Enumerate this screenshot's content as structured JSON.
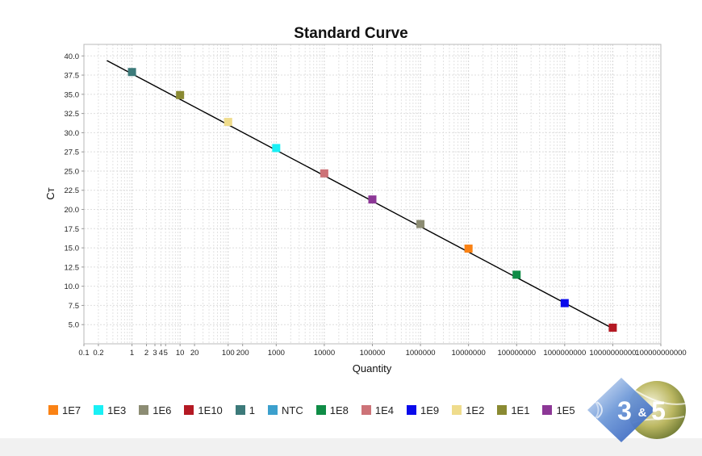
{
  "chart_data": {
    "type": "scatter",
    "title": "Standard Curve",
    "xlabel": "Quantity",
    "ylabel": "Cт",
    "xscale": "log",
    "xlim": [
      0.1,
      100000000000
    ],
    "ylim": [
      2.5,
      41.5
    ],
    "grid": true,
    "legend_position": "bottom",
    "x_tick_labels": [
      {
        "value": 0.1,
        "label": "0.1"
      },
      {
        "value": 0.2,
        "label": "0.2"
      },
      {
        "value": 1,
        "label": "1"
      },
      {
        "value": 2,
        "label": "2"
      },
      {
        "value": 3,
        "label": "3"
      },
      {
        "value": 4,
        "label": "4"
      },
      {
        "value": 5,
        "label": "5"
      },
      {
        "value": 10,
        "label": "10"
      },
      {
        "value": 20,
        "label": "20"
      },
      {
        "value": 100,
        "label": "100"
      },
      {
        "value": 200,
        "label": "200"
      },
      {
        "value": 1000,
        "label": "1000"
      },
      {
        "value": 10000,
        "label": "10000"
      },
      {
        "value": 100000,
        "label": "100000"
      },
      {
        "value": 1000000,
        "label": "1000000"
      },
      {
        "value": 10000000,
        "label": "10000000"
      },
      {
        "value": 100000000,
        "label": "100000000"
      },
      {
        "value": 1000000000,
        "label": "1000000000"
      },
      {
        "value": 10000000000,
        "label": "10000000000"
      },
      {
        "value": 100000000000,
        "label": "100000000000"
      }
    ],
    "y_ticks": [
      {
        "value": 5,
        "label": "5.0"
      },
      {
        "value": 7.5,
        "label": "7.5"
      },
      {
        "value": 10,
        "label": "10.0"
      },
      {
        "value": 12.5,
        "label": "12.5"
      },
      {
        "value": 15,
        "label": "15.0"
      },
      {
        "value": 17.5,
        "label": "17.5"
      },
      {
        "value": 20,
        "label": "20.0"
      },
      {
        "value": 22.5,
        "label": "22.5"
      },
      {
        "value": 25,
        "label": "25.0"
      },
      {
        "value": 27.5,
        "label": "27.5"
      },
      {
        "value": 30,
        "label": "30.0"
      },
      {
        "value": 32.5,
        "label": "32.5"
      },
      {
        "value": 35,
        "label": "35.0"
      },
      {
        "value": 37.5,
        "label": "37.5"
      },
      {
        "value": 40,
        "label": "40.0"
      }
    ],
    "fit_line": {
      "x": [
        0.3,
        10000000000
      ],
      "y": [
        39.4,
        4.5
      ]
    },
    "points": [
      {
        "name": "1",
        "x": 1,
        "y": 37.9,
        "color": "#3c7a7a"
      },
      {
        "name": "1E1",
        "x": 10,
        "y": 34.9,
        "color": "#8a8a32"
      },
      {
        "name": "1E2",
        "x": 100,
        "y": 31.4,
        "color": "#efdc8c"
      },
      {
        "name": "1E3",
        "x": 1000,
        "y": 28.0,
        "color": "#19f0f5"
      },
      {
        "name": "1E4",
        "x": 10000,
        "y": 24.7,
        "color": "#cd7378"
      },
      {
        "name": "1E5",
        "x": 100000,
        "y": 21.3,
        "color": "#8c3796"
      },
      {
        "name": "1E6",
        "x": 1000000,
        "y": 18.1,
        "color": "#8c8c73"
      },
      {
        "name": "1E7",
        "x": 10000000,
        "y": 14.9,
        "color": "#fa8214"
      },
      {
        "name": "1E8",
        "x": 100000000,
        "y": 11.5,
        "color": "#0f8c46"
      },
      {
        "name": "1E9",
        "x": 1000000000,
        "y": 7.8,
        "color": "#0a0aeb"
      },
      {
        "name": "1E10",
        "x": 10000000000,
        "y": 4.6,
        "color": "#b41923"
      }
    ]
  },
  "legend": [
    {
      "label": "1E7",
      "color": "#fa8214"
    },
    {
      "label": "1E3",
      "color": "#19f0f5"
    },
    {
      "label": "1E6",
      "color": "#8c8c73"
    },
    {
      "label": "1E10",
      "color": "#b41923"
    },
    {
      "label": "1",
      "color": "#3c7a7a"
    },
    {
      "label": "NTC",
      "color": "#3ca0cd"
    },
    {
      "label": "1E8",
      "color": "#0f8c46"
    },
    {
      "label": "1E4",
      "color": "#cd7378"
    },
    {
      "label": "1E9",
      "color": "#0a0aeb"
    },
    {
      "label": "1E2",
      "color": "#efdc8c"
    },
    {
      "label": "1E1",
      "color": "#8a8a32"
    },
    {
      "label": "1E5",
      "color": "#8c3796"
    }
  ],
  "logo": {
    "text_left": "3",
    "text_amp": "&",
    "text_right": "5"
  }
}
